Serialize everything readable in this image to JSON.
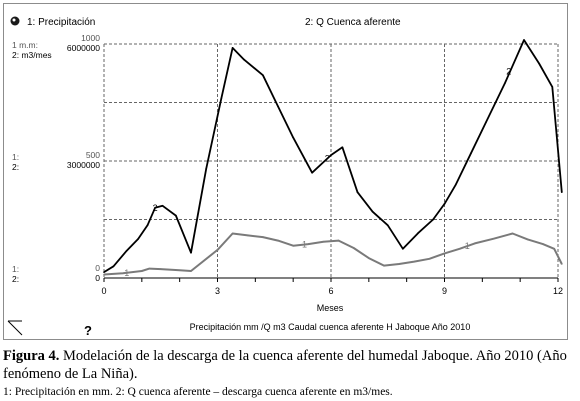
{
  "legend": {
    "series1": "1: Precipitación",
    "series2": "2: Q Cuenca aferente"
  },
  "axis_units": {
    "series1": "1 m.m:",
    "series2": "2: m3/mes",
    "mid1": "1:",
    "mid2": "2:",
    "bot1": "1:",
    "bot2": "2:"
  },
  "help_symbol": "?",
  "caption": {
    "label": "Figura 4.",
    "text": " Modelación de la descarga de la cuenca aferente del humedal Jaboque. Año 2010 (Año fenómeno de La Niña).",
    "note": "1: Precipitación en mm. 2: Q cuenca aferente – descarga cuenca aferente en m3/mes."
  },
  "chart_data": {
    "type": "line",
    "title": "Precipitación mm /Q m3 Caudal cuenca aferente H Jaboque Año 2010",
    "xlabel": "Meses",
    "xlim": [
      0,
      12
    ],
    "xticks": [
      "0",
      "3",
      "6",
      "9",
      "12"
    ],
    "grid": true,
    "series": [
      {
        "name": "1",
        "axis": "left",
        "ylim": [
          0,
          1000
        ],
        "yticks": [
          "0",
          "500",
          "1000"
        ],
        "color": "#7a7a7a",
        "x": [
          0,
          0.5,
          1,
          1.2,
          1.5,
          2,
          2.3,
          3,
          3.4,
          3.8,
          4.2,
          4.6,
          5,
          5.4,
          5.8,
          6.2,
          6.6,
          7,
          7.4,
          7.8,
          8.2,
          8.6,
          9,
          9.4,
          9.8,
          10.3,
          10.8,
          11.2,
          11.6,
          11.9,
          12.1
        ],
        "values": [
          15,
          20,
          30,
          40,
          38,
          33,
          30,
          120,
          190,
          182,
          175,
          160,
          138,
          145,
          155,
          160,
          128,
          85,
          53,
          60,
          70,
          82,
          105,
          125,
          148,
          168,
          190,
          165,
          145,
          125,
          60
        ]
      },
      {
        "name": "2",
        "axis": "right",
        "ylim": [
          0,
          6000000
        ],
        "yticks": [
          "0",
          "3000000",
          "6000000"
        ],
        "color": "#000000",
        "x": [
          0,
          0.25,
          0.6,
          0.9,
          1.15,
          1.35,
          1.55,
          1.9,
          2.3,
          2.7,
          3.1,
          3.4,
          3.7,
          4.2,
          4.6,
          5,
          5.5,
          6,
          6.3,
          6.7,
          7.1,
          7.5,
          7.9,
          8.3,
          8.7,
          9,
          9.3,
          9.7,
          10.1,
          10.6,
          11.1,
          11.5,
          11.85,
          12.1
        ],
        "values": [
          150000,
          300000,
          700000,
          1000000,
          1350000,
          1800000,
          1850000,
          1600000,
          650000,
          2800000,
          4600000,
          5900000,
          5600000,
          5200000,
          4400000,
          3600000,
          2700000,
          3150000,
          3350000,
          2200000,
          1700000,
          1350000,
          750000,
          1150000,
          1500000,
          1900000,
          2400000,
          3200000,
          4000000,
          5000000,
          6500000,
          5500000,
          4900000,
          2200000
        ]
      }
    ]
  }
}
